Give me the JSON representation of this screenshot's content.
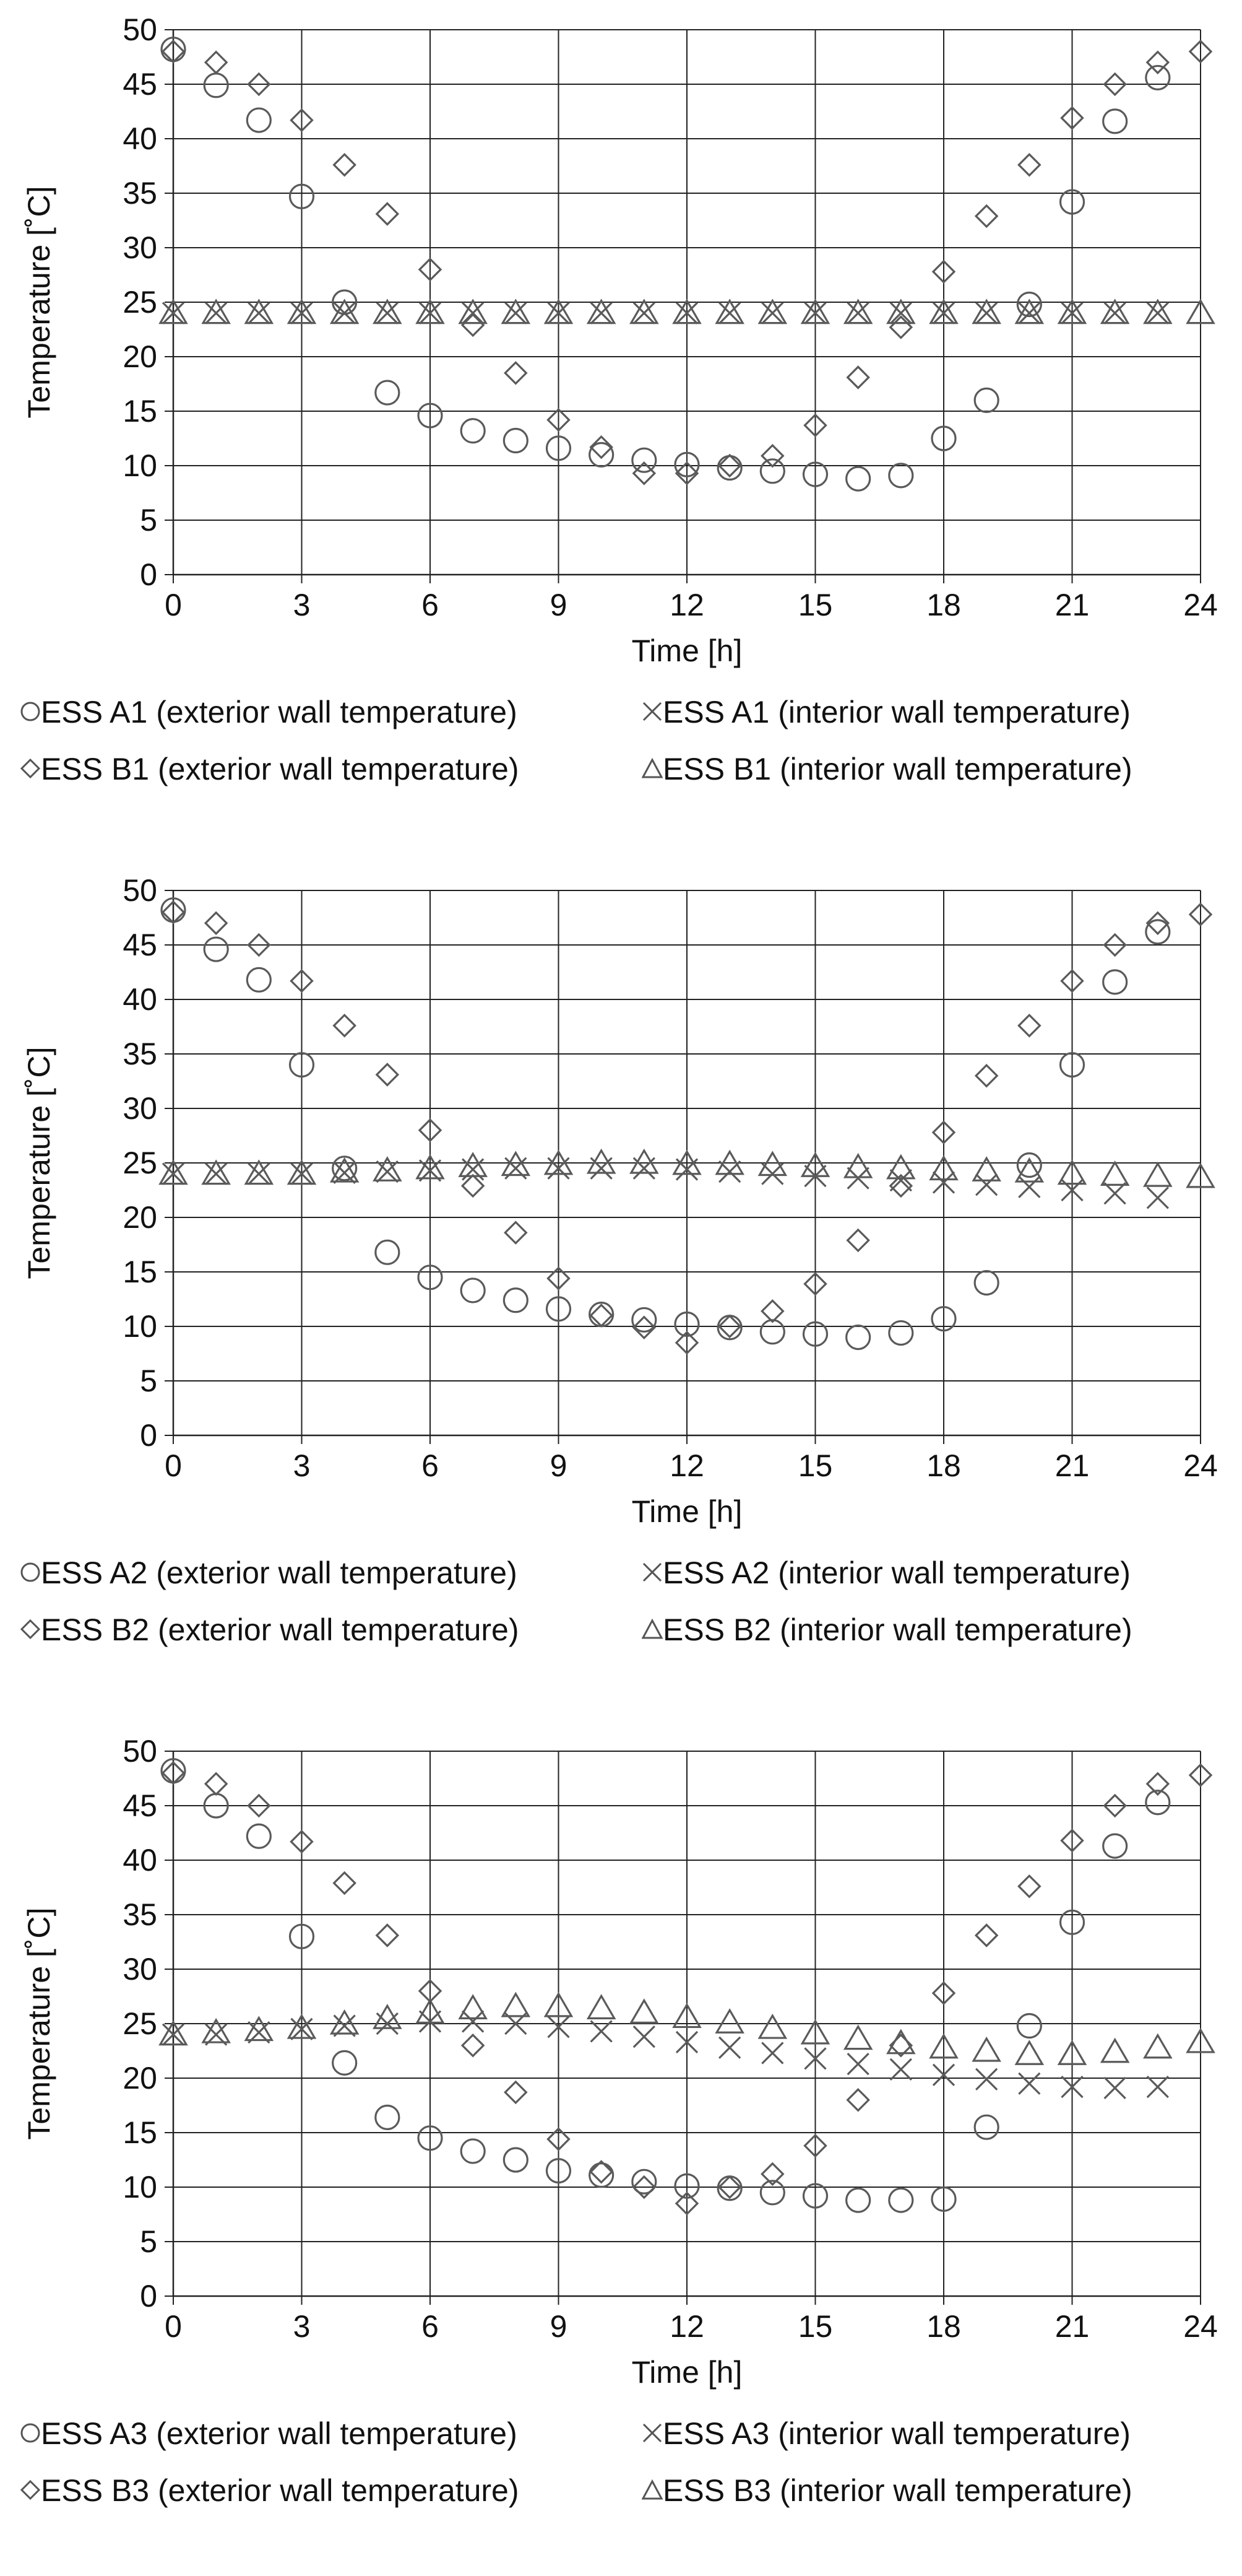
{
  "chart_data": [
    {
      "type": "scatter",
      "title": "",
      "xlabel": "Time [h]",
      "ylabel": "Temperature [˚C]",
      "xlim": [
        0,
        24
      ],
      "ylim": [
        0,
        50
      ],
      "xticks": [
        0,
        3,
        6,
        9,
        12,
        15,
        18,
        21,
        24
      ],
      "yticks": [
        0,
        5,
        10,
        15,
        20,
        25,
        30,
        35,
        40,
        45,
        50
      ],
      "grid": true,
      "legend_position": "bottom",
      "series": [
        {
          "name": "ESS A1 (exterior wall temperature)",
          "marker": "circle",
          "x": [
            0,
            1,
            2,
            3,
            4,
            5,
            6,
            7,
            8,
            9,
            10,
            11,
            12,
            13,
            14,
            15,
            16,
            17,
            18,
            19,
            20,
            21,
            22,
            23
          ],
          "y": [
            48.2,
            44.9,
            41.7,
            34.7,
            25.0,
            16.7,
            14.6,
            13.2,
            12.3,
            11.6,
            11.0,
            10.5,
            10.1,
            9.8,
            9.5,
            9.2,
            8.8,
            9.1,
            12.5,
            16.0,
            24.8,
            34.2,
            41.6,
            45.6
          ]
        },
        {
          "name": "ESS A1 (interior wall temperature)",
          "marker": "x",
          "x": [
            0,
            1,
            2,
            3,
            4,
            5,
            6,
            7,
            8,
            9,
            10,
            11,
            12,
            13,
            14,
            15,
            16,
            17,
            18,
            19,
            20,
            21,
            22,
            23
          ],
          "y": [
            24.0,
            24.0,
            24.0,
            24.0,
            24.0,
            24.0,
            24.0,
            24.0,
            24.0,
            24.0,
            24.0,
            24.0,
            24.0,
            24.0,
            24.0,
            24.0,
            24.0,
            24.0,
            24.0,
            24.0,
            24.0,
            24.0,
            24.0,
            24.0
          ]
        },
        {
          "name": "ESS B1 (exterior wall temperature)",
          "marker": "diamond",
          "x": [
            0,
            1,
            2,
            3,
            4,
            5,
            6,
            7,
            8,
            9,
            10,
            11,
            12,
            13,
            14,
            15,
            16,
            17,
            18,
            19,
            20,
            21,
            22,
            23,
            24
          ],
          "y": [
            48.0,
            47.0,
            45.0,
            41.7,
            37.6,
            33.1,
            28.0,
            22.9,
            18.5,
            14.2,
            11.7,
            9.3,
            9.3,
            10.0,
            10.9,
            13.7,
            18.1,
            22.7,
            27.8,
            32.9,
            37.6,
            41.9,
            45.0,
            47.0,
            48.0
          ]
        },
        {
          "name": "ESS B1 (interior wall temperature)",
          "marker": "triangle",
          "x": [
            0,
            1,
            2,
            3,
            4,
            5,
            6,
            7,
            8,
            9,
            10,
            11,
            12,
            13,
            14,
            15,
            16,
            17,
            18,
            19,
            20,
            21,
            22,
            23,
            24
          ],
          "y": [
            24.0,
            24.0,
            24.0,
            24.0,
            24.0,
            24.0,
            24.0,
            24.0,
            24.0,
            24.0,
            24.0,
            24.0,
            24.0,
            24.0,
            24.0,
            24.0,
            24.0,
            24.0,
            24.0,
            24.0,
            24.0,
            24.0,
            24.0,
            24.0,
            24.0
          ]
        }
      ]
    },
    {
      "type": "scatter",
      "title": "",
      "xlabel": "Time [h]",
      "ylabel": "Temperature [˚C]",
      "xlim": [
        0,
        24
      ],
      "ylim": [
        0,
        50
      ],
      "xticks": [
        0,
        3,
        6,
        9,
        12,
        15,
        18,
        21,
        24
      ],
      "yticks": [
        0,
        5,
        10,
        15,
        20,
        25,
        30,
        35,
        40,
        45,
        50
      ],
      "grid": true,
      "legend_position": "bottom",
      "series": [
        {
          "name": "ESS A2 (exterior wall temperature)",
          "marker": "circle",
          "x": [
            0,
            1,
            2,
            3,
            4,
            5,
            6,
            7,
            8,
            9,
            10,
            11,
            12,
            13,
            14,
            15,
            16,
            17,
            18,
            19,
            20,
            21,
            22,
            23
          ],
          "y": [
            48.2,
            44.6,
            41.8,
            34.0,
            24.5,
            16.8,
            14.5,
            13.3,
            12.4,
            11.6,
            11.1,
            10.6,
            10.2,
            9.9,
            9.5,
            9.3,
            9.0,
            9.4,
            10.7,
            14.0,
            24.8,
            34.0,
            41.6,
            46.2
          ]
        },
        {
          "name": "ESS A2 (interior wall temperature)",
          "marker": "x",
          "x": [
            0,
            1,
            2,
            3,
            4,
            5,
            6,
            7,
            8,
            9,
            10,
            11,
            12,
            13,
            14,
            15,
            16,
            17,
            18,
            19,
            20,
            21,
            22,
            23
          ],
          "y": [
            24.0,
            24.0,
            24.0,
            24.0,
            24.1,
            24.2,
            24.3,
            24.4,
            24.5,
            24.5,
            24.5,
            24.5,
            24.4,
            24.2,
            24.0,
            23.8,
            23.6,
            23.4,
            23.2,
            23.0,
            22.8,
            22.5,
            22.2,
            21.8
          ]
        },
        {
          "name": "ESS B2 (exterior wall temperature)",
          "marker": "diamond",
          "x": [
            0,
            1,
            2,
            3,
            4,
            5,
            6,
            7,
            8,
            9,
            10,
            11,
            12,
            13,
            14,
            15,
            16,
            17,
            18,
            19,
            20,
            21,
            22,
            23,
            24
          ],
          "y": [
            48.0,
            47.0,
            45.0,
            41.7,
            37.6,
            33.1,
            28.0,
            22.9,
            18.6,
            14.4,
            11.0,
            9.9,
            8.5,
            10.0,
            11.4,
            13.9,
            17.9,
            22.9,
            27.8,
            33.0,
            37.6,
            41.7,
            45.0,
            47.0,
            47.8
          ]
        },
        {
          "name": "ESS B2 (interior wall temperature)",
          "marker": "triangle",
          "x": [
            0,
            1,
            2,
            3,
            4,
            5,
            6,
            7,
            8,
            9,
            10,
            11,
            12,
            13,
            14,
            15,
            16,
            17,
            18,
            19,
            20,
            21,
            22,
            23,
            24
          ],
          "y": [
            24.0,
            24.0,
            24.0,
            24.0,
            24.2,
            24.3,
            24.5,
            24.7,
            24.8,
            24.9,
            25.0,
            25.0,
            24.9,
            24.9,
            24.8,
            24.7,
            24.6,
            24.5,
            24.4,
            24.3,
            24.2,
            24.0,
            23.9,
            23.8,
            23.7
          ]
        }
      ]
    },
    {
      "type": "scatter",
      "title": "",
      "xlabel": "Time [h]",
      "ylabel": "Temperature [˚C]",
      "xlim": [
        0,
        24
      ],
      "ylim": [
        0,
        50
      ],
      "xticks": [
        0,
        3,
        6,
        9,
        12,
        15,
        18,
        21,
        24
      ],
      "yticks": [
        0,
        5,
        10,
        15,
        20,
        25,
        30,
        35,
        40,
        45,
        50
      ],
      "grid": true,
      "legend_position": "bottom",
      "series": [
        {
          "name": "ESS A3 (exterior wall temperature)",
          "marker": "circle",
          "x": [
            0,
            1,
            2,
            3,
            4,
            5,
            6,
            7,
            8,
            9,
            10,
            11,
            12,
            13,
            14,
            15,
            16,
            17,
            18,
            19,
            20,
            21,
            22,
            23
          ],
          "y": [
            48.2,
            45.0,
            42.2,
            33.0,
            21.4,
            16.4,
            14.5,
            13.3,
            12.5,
            11.5,
            11.1,
            10.5,
            10.1,
            9.9,
            9.5,
            9.2,
            8.8,
            8.8,
            8.9,
            15.5,
            24.8,
            34.3,
            41.3,
            45.3
          ]
        },
        {
          "name": "ESS A3 (interior wall temperature)",
          "marker": "x",
          "x": [
            0,
            1,
            2,
            3,
            4,
            5,
            6,
            7,
            8,
            9,
            10,
            11,
            12,
            13,
            14,
            15,
            16,
            17,
            18,
            19,
            20,
            21,
            22,
            23
          ],
          "y": [
            24.0,
            24.0,
            24.2,
            24.5,
            24.8,
            25.0,
            25.2,
            25.2,
            25.0,
            24.7,
            24.3,
            23.8,
            23.3,
            22.8,
            22.3,
            21.8,
            21.3,
            20.8,
            20.3,
            19.9,
            19.5,
            19.2,
            19.1,
            19.2
          ]
        },
        {
          "name": "ESS B3 (exterior wall temperature)",
          "marker": "diamond",
          "x": [
            0,
            1,
            2,
            3,
            4,
            5,
            6,
            7,
            8,
            9,
            10,
            11,
            12,
            13,
            14,
            15,
            16,
            17,
            18,
            19,
            20,
            21,
            22,
            23,
            24
          ],
          "y": [
            48.0,
            47.0,
            45.0,
            41.7,
            37.9,
            33.1,
            28.0,
            23.0,
            18.7,
            14.4,
            11.4,
            10.0,
            8.5,
            10.0,
            11.2,
            13.8,
            18.0,
            23.0,
            27.8,
            33.1,
            37.6,
            41.8,
            45.0,
            47.0,
            47.8
          ]
        },
        {
          "name": "ESS B3 (interior wall temperature)",
          "marker": "triangle",
          "x": [
            0,
            1,
            2,
            3,
            4,
            5,
            6,
            7,
            8,
            9,
            10,
            11,
            12,
            13,
            14,
            15,
            16,
            17,
            18,
            19,
            20,
            21,
            22,
            23,
            24
          ],
          "y": [
            24.0,
            24.2,
            24.4,
            24.6,
            25.0,
            25.5,
            26.0,
            26.4,
            26.6,
            26.6,
            26.4,
            26.0,
            25.6,
            25.1,
            24.6,
            24.1,
            23.6,
            23.2,
            22.8,
            22.5,
            22.2,
            22.2,
            22.4,
            22.8,
            23.3
          ]
        }
      ]
    }
  ]
}
